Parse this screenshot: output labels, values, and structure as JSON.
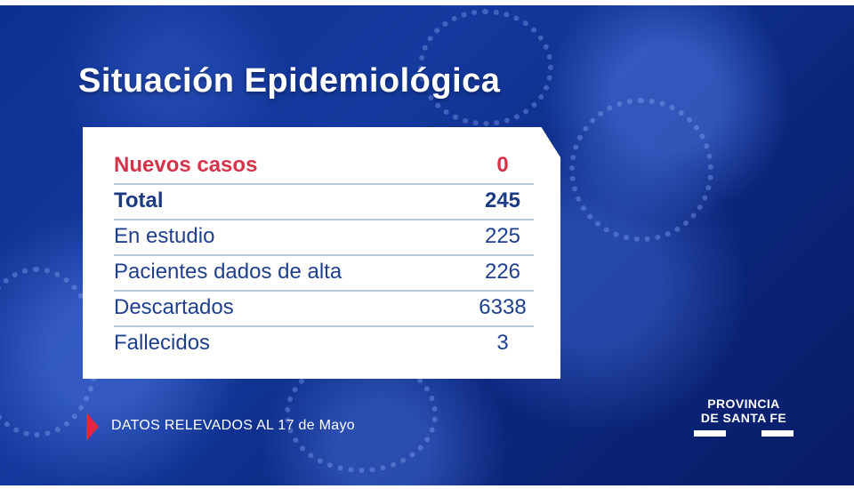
{
  "title": "Situación Epidemiológica",
  "table": {
    "rows": [
      {
        "label": "Nuevos casos",
        "value": "0"
      },
      {
        "label": "Total",
        "value": "245"
      },
      {
        "label": "En estudio",
        "value": "225"
      },
      {
        "label": "Pacientes dados de alta",
        "value": "226"
      },
      {
        "label": "Descartados",
        "value": "6338"
      },
      {
        "label": "Fallecidos",
        "value": "3"
      }
    ]
  },
  "footer": {
    "text": "DATOS RELEVADOS AL 17 de Mayo"
  },
  "logo": {
    "line1": "PROVINCIA",
    "line2": "DE SANTA FE"
  },
  "colors": {
    "accent_red": "#d6334a",
    "text_blue": "#1f3f8f",
    "background": "#0b2a8a"
  }
}
